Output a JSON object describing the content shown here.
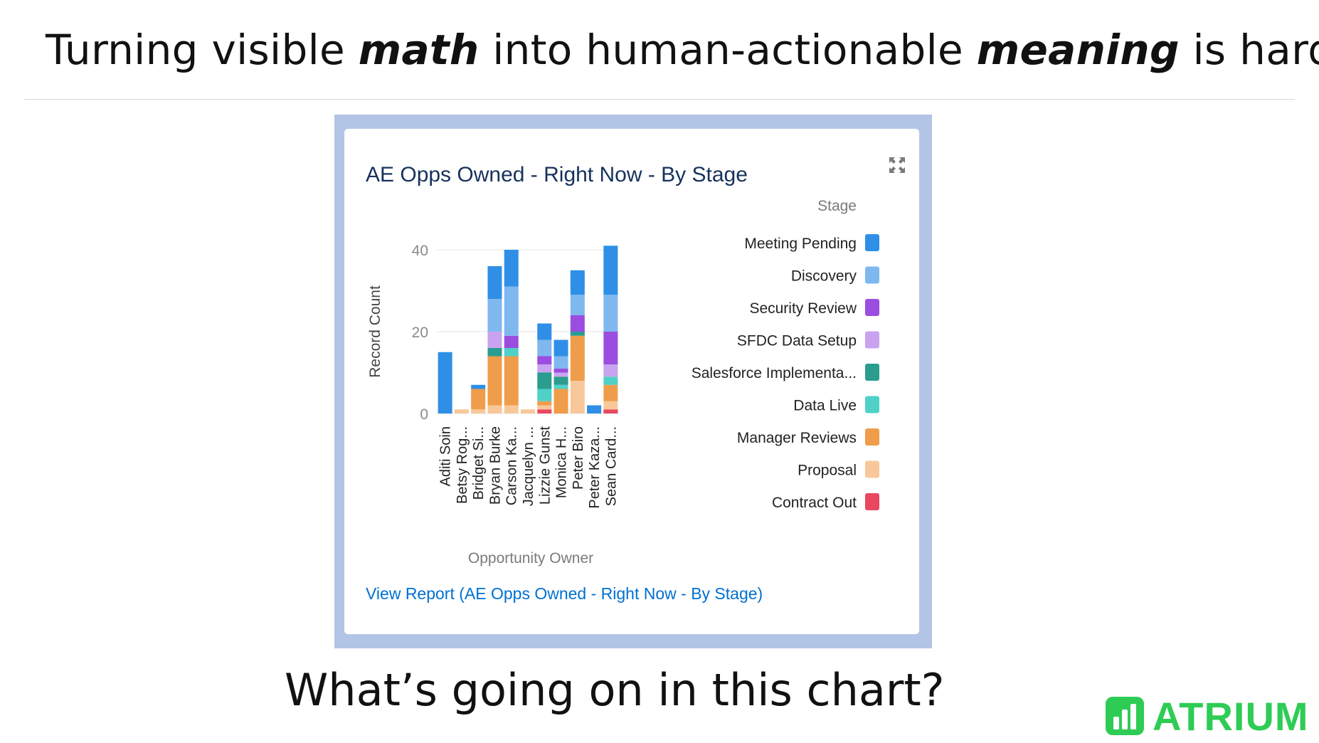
{
  "header": {
    "title_parts": [
      "Turning visible ",
      "math",
      " into human-actionable ",
      "meaning",
      " is hard!"
    ]
  },
  "card": {
    "title": "AE Opps Owned - Right Now - By Stage",
    "view_report": "View Report (AE Opps Owned - Right Now - By Stage)",
    "expand_icon": "expand-icon"
  },
  "subtitle": "What’s going on in this chart?",
  "logo": {
    "text": "ATRIUM",
    "color": "#2ecc55",
    "icon": "bar-chart-icon"
  },
  "chart_data": {
    "type": "bar",
    "stacked": true,
    "title": "AE Opps Owned - Right Now - By Stage",
    "xlabel": "Opportunity Owner",
    "ylabel": "Record Count",
    "ylim": [
      0,
      40
    ],
    "yticks": [
      0,
      20,
      40
    ],
    "grid": true,
    "legend_title": "Stage",
    "legend_position": "right",
    "categories": [
      "Aditi Soin",
      "Betsy Rog...",
      "Bridget Si...",
      "Bryan Burke",
      "Carson Ka...",
      "Jacquelyn ...",
      "Lizzie Gunst",
      "Monica H...",
      "Peter Biro",
      "Peter Kaza...",
      "Sean Card..."
    ],
    "series": [
      {
        "name": "Contract Out",
        "color": "#e8475f",
        "values": [
          0,
          0,
          0,
          0,
          0,
          0,
          1,
          0,
          0,
          0,
          1
        ]
      },
      {
        "name": "Proposal",
        "color": "#f8c89a",
        "values": [
          0,
          1,
          1,
          2,
          2,
          1,
          1,
          0,
          8,
          0,
          2
        ]
      },
      {
        "name": "Manager Reviews",
        "color": "#ef9d4a",
        "values": [
          0,
          0,
          5,
          12,
          12,
          0,
          1,
          6,
          11,
          0,
          4
        ]
      },
      {
        "name": "Data Live",
        "color": "#4fd1c8",
        "values": [
          0,
          0,
          0,
          0,
          2,
          0,
          3,
          1,
          0,
          0,
          2
        ]
      },
      {
        "name": "Salesforce Implementa...",
        "color": "#2a9d8f",
        "values": [
          0,
          0,
          0,
          2,
          0,
          0,
          4,
          2,
          1,
          0,
          0
        ]
      },
      {
        "name": "SFDC Data Setup",
        "color": "#c9a3ef",
        "values": [
          0,
          0,
          0,
          4,
          0,
          0,
          2,
          1,
          0,
          0,
          3
        ]
      },
      {
        "name": "Security Review",
        "color": "#9b4de0",
        "values": [
          0,
          0,
          0,
          0,
          3,
          0,
          2,
          1,
          4,
          0,
          8
        ]
      },
      {
        "name": "Discovery",
        "color": "#7fb8ef",
        "values": [
          0,
          0,
          0,
          8,
          12,
          0,
          4,
          3,
          5,
          0,
          9
        ]
      },
      {
        "name": "Meeting Pending",
        "color": "#2f8fe6",
        "values": [
          15,
          0,
          1,
          8,
          9,
          0,
          4,
          4,
          6,
          2,
          12
        ]
      }
    ]
  }
}
